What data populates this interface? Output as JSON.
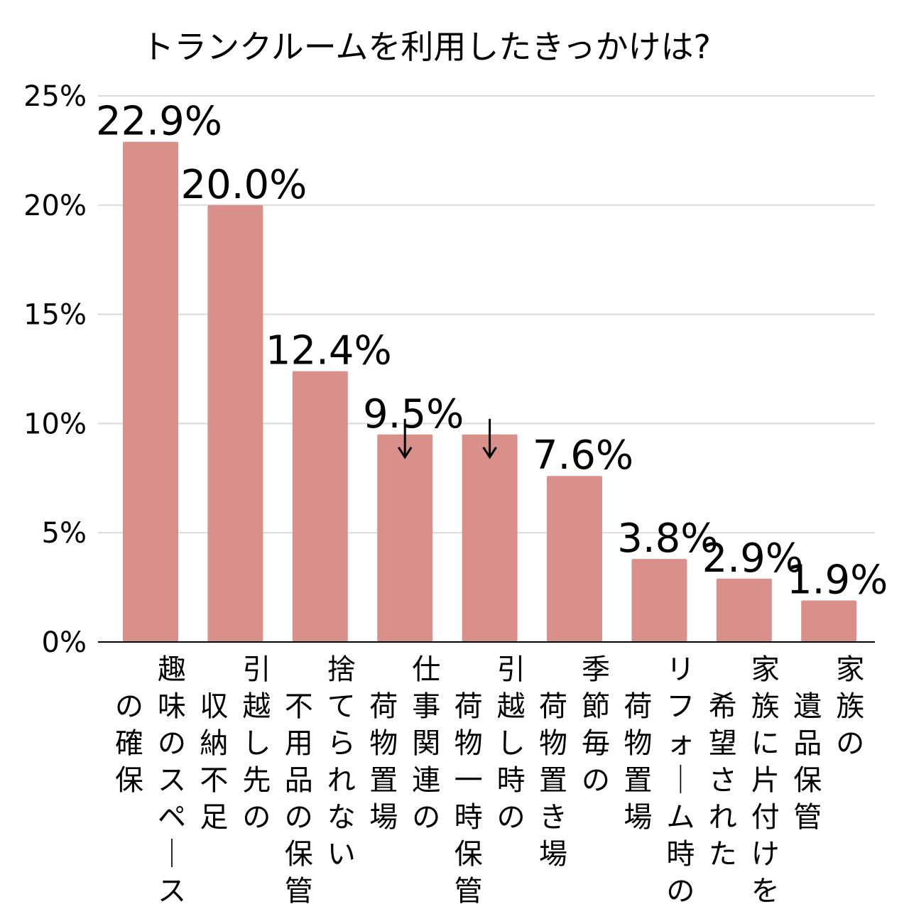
{
  "chart_data": {
    "type": "bar",
    "title": "トランクルームを利用したきっかけは?",
    "xlabel": "",
    "ylabel": "",
    "ylim": [
      0,
      25
    ],
    "y_ticks": [
      0,
      5,
      10,
      15,
      20,
      25
    ],
    "y_tick_labels": [
      "0%",
      "5%",
      "10%",
      "15%",
      "20%",
      "25%"
    ],
    "grid": true,
    "bar_color": "#d9908b",
    "categories": [
      "趣味のスペースの確保",
      "引越し先の収納不足",
      "捨てられない不用品の保管",
      "仕事関連の荷物置場",
      "引越し時の荷物一時保管",
      "季節毎の荷物置き場",
      "リフォーム時の荷物置場",
      "家族に片付けを希望された",
      "家族の遺品保管"
    ],
    "category_columns": [
      [
        {
          "text": "趣味のスペース",
          "start_row": 0
        },
        {
          "text": "の確保",
          "start_row": 1
        }
      ],
      [
        {
          "text": "引越し先の",
          "start_row": 0
        },
        {
          "text": "収納不足",
          "start_row": 1
        }
      ],
      [
        {
          "text": "捨てられない",
          "start_row": 0
        },
        {
          "text": "不用品の保管",
          "start_row": 1
        }
      ],
      [
        {
          "text": "仕事関連の",
          "start_row": 0
        },
        {
          "text": "荷物置場",
          "start_row": 1
        }
      ],
      [
        {
          "text": "引越し時の",
          "start_row": 0
        },
        {
          "text": "荷物一時保管",
          "start_row": 1
        }
      ],
      [
        {
          "text": "季節毎の",
          "start_row": 0
        },
        {
          "text": "荷物置き場",
          "start_row": 1
        }
      ],
      [
        {
          "text": "リフォーム時の",
          "start_row": 0
        },
        {
          "text": "荷物置場",
          "start_row": 1
        }
      ],
      [
        {
          "text": "家族に片付けを",
          "start_row": 0
        },
        {
          "text": "希望された",
          "start_row": 1
        }
      ],
      [
        {
          "text": "家族の",
          "start_row": 0
        },
        {
          "text": "遺品保管",
          "start_row": 1
        }
      ]
    ],
    "values": [
      22.9,
      20.0,
      12.4,
      9.5,
      9.5,
      7.6,
      3.8,
      2.9,
      1.9
    ],
    "data_labels": [
      "22.9%",
      "20.0%",
      "12.4%",
      "9.5%",
      "",
      "7.6%",
      "3.8%",
      "2.9%",
      "1.9%"
    ],
    "arrow_bars": [
      3,
      4
    ]
  }
}
